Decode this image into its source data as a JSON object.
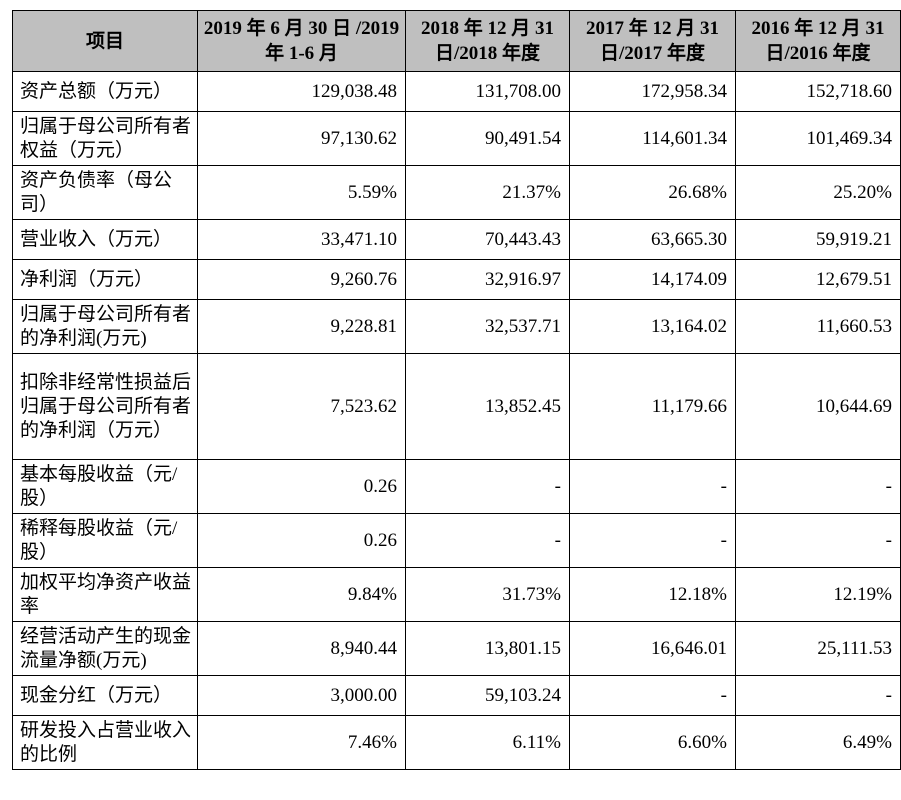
{
  "table": {
    "headers": [
      "项目",
      "2019 年 6 月 30 日 /2019 年 1-6 月",
      "2018 年 12 月 31 日/2018 年度",
      "2017 年 12 月 31 日/2017 年度",
      "2016 年 12 月 31 日/2016 年度"
    ],
    "rows": [
      {
        "label": "资产总额（万元）",
        "values": [
          "129,038.48",
          "131,708.00",
          "172,958.34",
          "152,718.60"
        ]
      },
      {
        "label": "归属于母公司所有者权益（万元）",
        "values": [
          "97,130.62",
          "90,491.54",
          "114,601.34",
          "101,469.34"
        ]
      },
      {
        "label": "资产负债率（母公司）",
        "values": [
          "5.59%",
          "21.37%",
          "26.68%",
          "25.20%"
        ]
      },
      {
        "label": "营业收入（万元）",
        "values": [
          "33,471.10",
          "70,443.43",
          "63,665.30",
          "59,919.21"
        ]
      },
      {
        "label": "净利润（万元）",
        "values": [
          "9,260.76",
          "32,916.97",
          "14,174.09",
          "12,679.51"
        ]
      },
      {
        "label": "归属于母公司所有者的净利润(万元)",
        "values": [
          "9,228.81",
          "32,537.71",
          "13,164.02",
          "11,660.53"
        ]
      },
      {
        "label": "扣除非经常性损益后归属于母公司所有者的净利润（万元）",
        "values": [
          "7,523.62",
          "13,852.45",
          "11,179.66",
          "10,644.69"
        ]
      },
      {
        "label": "基本每股收益（元/股）",
        "values": [
          "0.26",
          "-",
          "-",
          "-"
        ]
      },
      {
        "label": "稀释每股收益（元/股）",
        "values": [
          "0.26",
          "-",
          "-",
          "-"
        ]
      },
      {
        "label": "加权平均净资产收益率",
        "values": [
          "9.84%",
          "31.73%",
          "12.18%",
          "12.19%"
        ]
      },
      {
        "label": "经营活动产生的现金流量净额(万元)",
        "values": [
          "8,940.44",
          "13,801.15",
          "16,646.01",
          "25,111.53"
        ]
      },
      {
        "label": "现金分红（万元）",
        "values": [
          "3,000.00",
          "59,103.24",
          "-",
          "-"
        ]
      },
      {
        "label": "研发投入占营业收入的比例",
        "values": [
          "7.46%",
          "6.11%",
          "6.60%",
          "6.49%"
        ]
      }
    ]
  }
}
